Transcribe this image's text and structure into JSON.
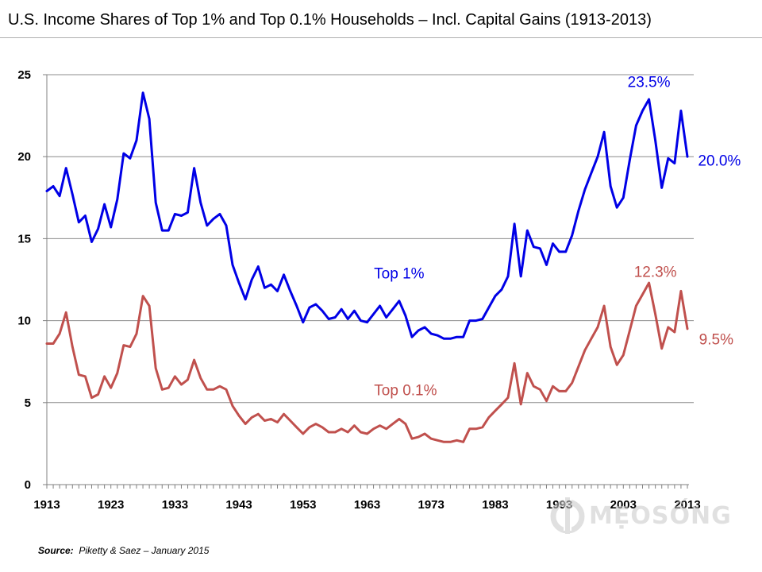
{
  "chart_data": {
    "type": "line",
    "title": "U.S. Income Shares of Top 1% and Top 0.1% Households – Incl. Capital Gains (1913-2013)",
    "xlabel": "",
    "ylabel": "",
    "xlim": [
      1913,
      2013
    ],
    "ylim": [
      0,
      25
    ],
    "y_ticks": [
      0,
      5,
      10,
      15,
      20,
      25
    ],
    "x_ticks": [
      1913,
      1923,
      1933,
      1943,
      1953,
      1963,
      1973,
      1983,
      1993,
      2003,
      2013
    ],
    "grid": "horizontal",
    "series": [
      {
        "name": "Top 1%",
        "color": "#0000e6",
        "x": [
          1913,
          1914,
          1915,
          1916,
          1917,
          1918,
          1919,
          1920,
          1921,
          1922,
          1923,
          1924,
          1925,
          1926,
          1927,
          1928,
          1929,
          1930,
          1931,
          1932,
          1933,
          1934,
          1935,
          1936,
          1937,
          1938,
          1939,
          1940,
          1941,
          1942,
          1943,
          1944,
          1945,
          1946,
          1947,
          1948,
          1949,
          1950,
          1951,
          1952,
          1953,
          1954,
          1955,
          1956,
          1957,
          1958,
          1959,
          1960,
          1961,
          1962,
          1963,
          1964,
          1965,
          1966,
          1967,
          1968,
          1969,
          1970,
          1971,
          1972,
          1973,
          1974,
          1975,
          1976,
          1977,
          1978,
          1979,
          1980,
          1981,
          1982,
          1983,
          1984,
          1985,
          1986,
          1987,
          1988,
          1989,
          1990,
          1991,
          1992,
          1993,
          1994,
          1995,
          1996,
          1997,
          1998,
          1999,
          2000,
          2001,
          2002,
          2003,
          2004,
          2005,
          2006,
          2007,
          2008,
          2009,
          2010,
          2011,
          2012,
          2013
        ],
        "values": [
          17.9,
          18.2,
          17.6,
          19.3,
          17.7,
          16.0,
          16.4,
          14.8,
          15.6,
          17.1,
          15.7,
          17.4,
          20.2,
          19.9,
          21.0,
          23.9,
          22.3,
          17.2,
          15.5,
          15.5,
          16.5,
          16.4,
          16.6,
          19.3,
          17.2,
          15.8,
          16.2,
          16.5,
          15.8,
          13.4,
          12.3,
          11.3,
          12.5,
          13.3,
          12.0,
          12.2,
          11.8,
          12.8,
          11.8,
          10.9,
          9.9,
          10.8,
          11.0,
          10.6,
          10.1,
          10.2,
          10.7,
          10.1,
          10.6,
          10.0,
          9.9,
          10.4,
          10.9,
          10.2,
          10.7,
          11.2,
          10.3,
          9.0,
          9.4,
          9.6,
          9.2,
          9.1,
          8.9,
          8.9,
          9.0,
          9.0,
          10.0,
          10.0,
          10.1,
          10.8,
          11.5,
          11.9,
          12.7,
          15.9,
          12.7,
          15.5,
          14.5,
          14.4,
          13.4,
          14.7,
          14.2,
          14.2,
          15.2,
          16.7,
          18.0,
          19.0,
          20.0,
          21.5,
          18.2,
          16.9,
          17.5,
          19.8,
          21.9,
          22.8,
          23.5,
          21.0,
          18.1,
          19.9,
          19.6,
          22.8,
          20.0
        ]
      },
      {
        "name": "Top 0.1%",
        "color": "#c0504d",
        "x": [
          1913,
          1914,
          1915,
          1916,
          1917,
          1918,
          1919,
          1920,
          1921,
          1922,
          1923,
          1924,
          1925,
          1926,
          1927,
          1928,
          1929,
          1930,
          1931,
          1932,
          1933,
          1934,
          1935,
          1936,
          1937,
          1938,
          1939,
          1940,
          1941,
          1942,
          1943,
          1944,
          1945,
          1946,
          1947,
          1948,
          1949,
          1950,
          1951,
          1952,
          1953,
          1954,
          1955,
          1956,
          1957,
          1958,
          1959,
          1960,
          1961,
          1962,
          1963,
          1964,
          1965,
          1966,
          1967,
          1968,
          1969,
          1970,
          1971,
          1972,
          1973,
          1974,
          1975,
          1976,
          1977,
          1978,
          1979,
          1980,
          1981,
          1982,
          1983,
          1984,
          1985,
          1986,
          1987,
          1988,
          1989,
          1990,
          1991,
          1992,
          1993,
          1994,
          1995,
          1996,
          1997,
          1998,
          1999,
          2000,
          2001,
          2002,
          2003,
          2004,
          2005,
          2006,
          2007,
          2008,
          2009,
          2010,
          2011,
          2012,
          2013
        ],
        "values": [
          8.6,
          8.6,
          9.2,
          10.5,
          8.4,
          6.7,
          6.6,
          5.3,
          5.5,
          6.6,
          5.9,
          6.8,
          8.5,
          8.4,
          9.2,
          11.5,
          10.9,
          7.1,
          5.8,
          5.9,
          6.6,
          6.1,
          6.4,
          7.6,
          6.5,
          5.8,
          5.8,
          6.0,
          5.8,
          4.8,
          4.2,
          3.7,
          4.1,
          4.3,
          3.9,
          4.0,
          3.8,
          4.3,
          3.9,
          3.5,
          3.1,
          3.5,
          3.7,
          3.5,
          3.2,
          3.2,
          3.4,
          3.2,
          3.6,
          3.2,
          3.1,
          3.4,
          3.6,
          3.4,
          3.7,
          4.0,
          3.7,
          2.8,
          2.9,
          3.1,
          2.8,
          2.7,
          2.6,
          2.6,
          2.7,
          2.6,
          3.4,
          3.4,
          3.5,
          4.1,
          4.5,
          4.9,
          5.3,
          7.4,
          4.9,
          6.8,
          6.0,
          5.8,
          5.1,
          6.0,
          5.7,
          5.7,
          6.2,
          7.2,
          8.2,
          8.9,
          9.6,
          10.9,
          8.4,
          7.3,
          7.9,
          9.4,
          10.9,
          11.6,
          12.3,
          10.4,
          8.3,
          9.6,
          9.3,
          11.8,
          9.5
        ]
      }
    ],
    "annotations": [
      {
        "text": "Top 1%",
        "series": 0,
        "x": 1968,
        "y": 12.9
      },
      {
        "text": "Top 0.1%",
        "series": 1,
        "x": 1969,
        "y": 5.8
      },
      {
        "text": "23.5%",
        "series": 0,
        "x": 2007,
        "y": 24.6
      },
      {
        "text": "20.0%",
        "series": 0,
        "x": 2018,
        "y": 19.8
      },
      {
        "text": "12.3%",
        "series": 1,
        "x": 2008,
        "y": 13.0
      },
      {
        "text": "9.5%",
        "series": 1,
        "x": 2017.5,
        "y": 8.9
      }
    ]
  },
  "source": {
    "label": "Source:",
    "text": "Piketty & Saez – January 2015"
  },
  "watermark": {
    "text": "MẸOSỐNG"
  }
}
